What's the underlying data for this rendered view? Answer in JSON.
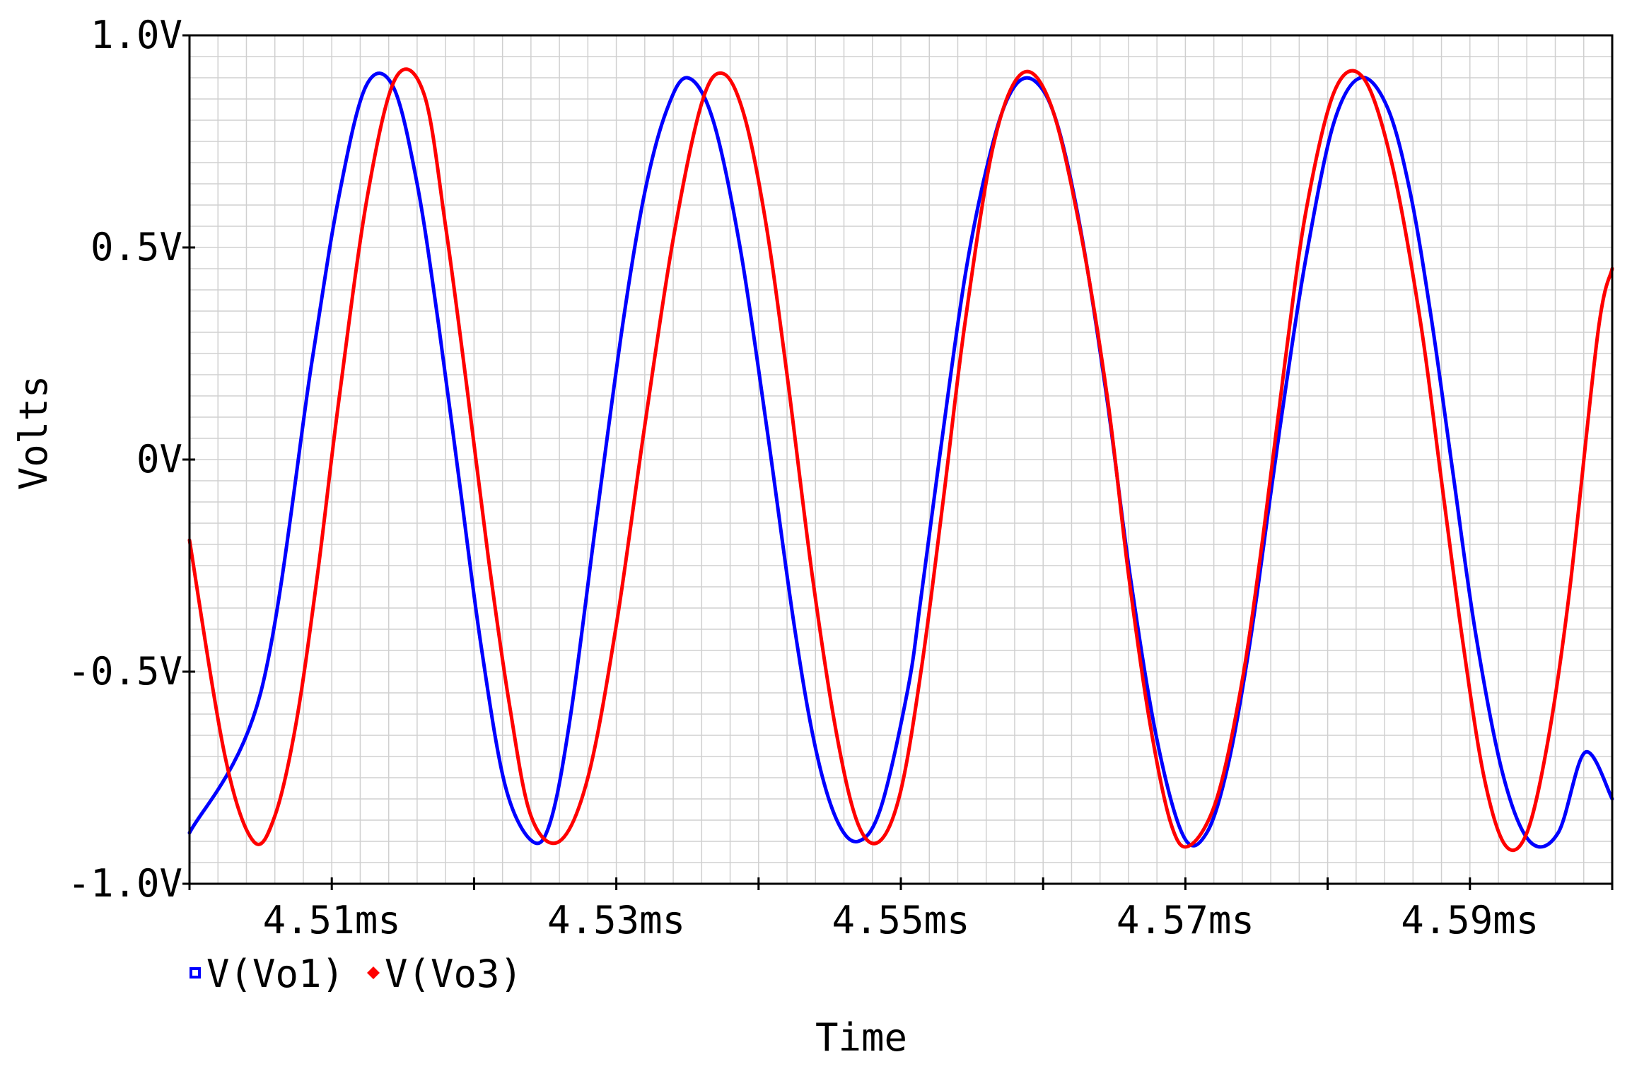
{
  "chart_data": {
    "type": "line",
    "title": "",
    "xlabel": "Time",
    "ylabel": "Volts",
    "x_unit": "ms",
    "xlim": [
      4.5,
      4.6
    ],
    "ylim": [
      -1.0,
      1.0
    ],
    "xticks": [
      {
        "value": 4.51,
        "label": "4.51ms"
      },
      {
        "value": 4.53,
        "label": "4.53ms"
      },
      {
        "value": 4.55,
        "label": "4.55ms"
      },
      {
        "value": 4.57,
        "label": "4.57ms"
      },
      {
        "value": 4.59,
        "label": "4.59ms"
      }
    ],
    "yticks": [
      {
        "value": 1.0,
        "label": "1.0V"
      },
      {
        "value": 0.5,
        "label": "0.5V"
      },
      {
        "value": 0.0,
        "label": "0V"
      },
      {
        "value": -0.5,
        "label": "-0.5V"
      },
      {
        "value": -1.0,
        "label": "-1.0V"
      }
    ],
    "grid": true,
    "legend_position": "bottom-left",
    "series": [
      {
        "name": "V(Vo1)",
        "color": "#0000ff",
        "marker": "square",
        "x": [
          4.5,
          4.505,
          4.5086,
          4.5105,
          4.5124,
          4.5143,
          4.516,
          4.5175,
          4.519,
          4.5205,
          4.5222,
          4.5241,
          4.5254,
          4.5268,
          4.5286,
          4.5305,
          4.532,
          4.5335,
          4.535,
          4.5368,
          4.5387,
          4.5406,
          4.5425,
          4.544,
          4.5455,
          4.547,
          4.5486,
          4.5505,
          4.5514,
          4.5527,
          4.5546,
          4.5565,
          4.558,
          4.5595,
          4.561,
          4.5627,
          4.5645,
          4.5661,
          4.568,
          4.5699,
          4.5715,
          4.573,
          4.5745,
          4.576,
          4.5771,
          4.5785,
          4.5804,
          4.5823,
          4.5842,
          4.5858,
          4.5873,
          4.5888,
          4.5904,
          4.5923,
          4.5942,
          4.5962,
          4.5981,
          4.6
        ],
        "y": [
          -0.88,
          -0.55,
          0.23,
          0.62,
          0.88,
          0.88,
          0.65,
          0.32,
          -0.06,
          -0.44,
          -0.77,
          -0.9,
          -0.85,
          -0.6,
          -0.14,
          0.33,
          0.63,
          0.82,
          0.9,
          0.8,
          0.5,
          0.07,
          -0.39,
          -0.68,
          -0.85,
          -0.9,
          -0.82,
          -0.54,
          -0.33,
          0.0,
          0.45,
          0.75,
          0.88,
          0.89,
          0.79,
          0.53,
          0.14,
          -0.27,
          -0.66,
          -0.89,
          -0.88,
          -0.72,
          -0.44,
          -0.08,
          0.18,
          0.48,
          0.79,
          0.9,
          0.83,
          0.63,
          0.33,
          -0.03,
          -0.41,
          -0.74,
          -0.9,
          -0.88,
          -0.69,
          -0.8
        ]
      },
      {
        "name": "V(Vo3)",
        "color": "#ff0000",
        "marker": "diamond",
        "x": [
          4.5,
          4.5025,
          4.5045,
          4.506,
          4.5075,
          4.509,
          4.5105,
          4.5125,
          4.5145,
          4.5165,
          4.518,
          4.5195,
          4.521,
          4.5225,
          4.524,
          4.526,
          4.528,
          4.53,
          4.532,
          4.534,
          4.536,
          4.5375,
          4.539,
          4.5405,
          4.542,
          4.5438,
          4.5455,
          4.547,
          4.5485,
          4.55,
          4.5515,
          4.553,
          4.5545,
          4.5565,
          4.5585,
          4.5605,
          4.5625,
          4.5645,
          4.566,
          4.5675,
          4.569,
          4.5703,
          4.5722,
          4.574,
          4.5755,
          4.577,
          4.5785,
          4.5805,
          4.5825,
          4.5845,
          4.5865,
          4.588,
          4.5895,
          4.591,
          4.5925,
          4.594,
          4.5955,
          4.597,
          4.599,
          4.6
        ],
        "y": [
          -0.19,
          -0.7,
          -0.9,
          -0.84,
          -0.62,
          -0.27,
          0.14,
          0.62,
          0.9,
          0.86,
          0.55,
          0.17,
          -0.23,
          -0.58,
          -0.84,
          -0.9,
          -0.75,
          -0.39,
          0.08,
          0.52,
          0.84,
          0.91,
          0.81,
          0.56,
          0.2,
          -0.28,
          -0.65,
          -0.86,
          -0.9,
          -0.78,
          -0.48,
          -0.09,
          0.32,
          0.74,
          0.91,
          0.84,
          0.56,
          0.15,
          -0.27,
          -0.62,
          -0.86,
          -0.91,
          -0.8,
          -0.52,
          -0.17,
          0.23,
          0.59,
          0.87,
          0.9,
          0.7,
          0.33,
          -0.05,
          -0.43,
          -0.75,
          -0.91,
          -0.88,
          -0.66,
          -0.31,
          0.3,
          0.45
        ]
      }
    ]
  }
}
